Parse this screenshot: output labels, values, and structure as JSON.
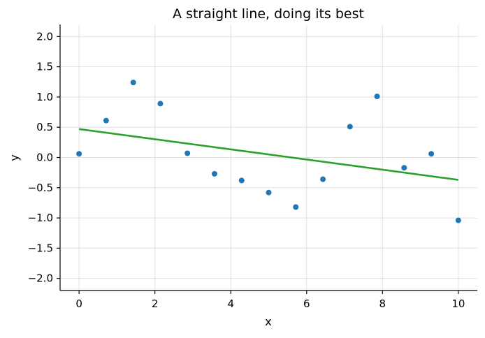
{
  "chart_data": {
    "type": "scatter",
    "title": "A straight line, doing its best",
    "xlabel": "x",
    "ylabel": "y",
    "xlim": [
      -0.5,
      10.5
    ],
    "ylim": [
      -2.2,
      2.2
    ],
    "x_ticks": [
      0,
      2,
      4,
      6,
      8,
      10
    ],
    "x_tick_labels": [
      "0",
      "2",
      "4",
      "6",
      "8",
      "10"
    ],
    "y_ticks": [
      -2.0,
      -1.5,
      -1.0,
      -0.5,
      0.0,
      0.5,
      1.0,
      1.5,
      2.0
    ],
    "y_tick_labels": [
      "−2.0",
      "−1.5",
      "−1.0",
      "−0.5",
      "0.0",
      "0.5",
      "1.0",
      "1.5",
      "2.0"
    ],
    "grid": true,
    "series": [
      {
        "kind": "scatter",
        "color": "#1f77b4",
        "x": [
          0,
          0.714,
          1.429,
          2.143,
          2.857,
          3.571,
          4.286,
          5.0,
          5.714,
          6.429,
          7.143,
          7.857,
          8.571,
          9.286,
          10.0
        ],
        "y": [
          0.06,
          0.61,
          1.24,
          0.89,
          0.07,
          -0.27,
          -0.38,
          -0.58,
          -0.82,
          -0.36,
          0.51,
          1.01,
          -0.17,
          0.06,
          -1.04
        ]
      },
      {
        "kind": "line",
        "color": "#2ca02c",
        "x": [
          0,
          10
        ],
        "y": [
          0.47,
          -0.37
        ]
      }
    ]
  }
}
